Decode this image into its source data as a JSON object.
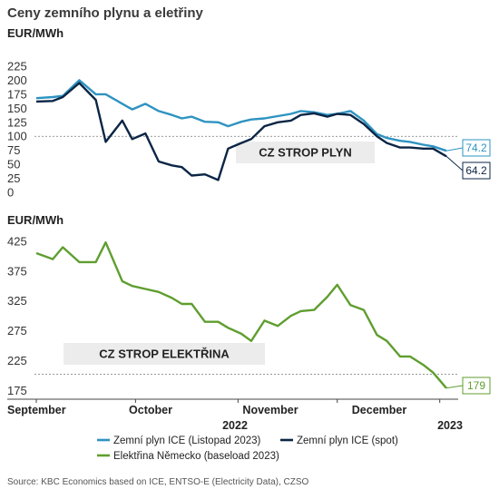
{
  "title": "Ceny zemního plynu a eletřiny",
  "source": "Source: KBC Economics based on ICE, ENTSO-E (Electricity Data), CZSO",
  "chart_data": [
    {
      "type": "line",
      "unit_label": "EUR/MWh",
      "ylim": [
        0,
        225
      ],
      "yticks": [
        0,
        25,
        50,
        75,
        100,
        125,
        150,
        175,
        200,
        225
      ],
      "reference_line": 100,
      "annotation": "CZ STROP PLYN",
      "x": [
        "2022-09-01",
        "2022-09-06",
        "2022-09-09",
        "2022-09-14",
        "2022-09-19",
        "2022-09-22",
        "2022-09-27",
        "2022-09-30",
        "2022-10-04",
        "2022-10-08",
        "2022-10-12",
        "2022-10-15",
        "2022-10-18",
        "2022-10-22",
        "2022-10-26",
        "2022-10-29",
        "2022-11-02",
        "2022-11-05",
        "2022-11-09",
        "2022-11-13",
        "2022-11-17",
        "2022-11-20",
        "2022-11-24",
        "2022-11-28",
        "2022-12-01",
        "2022-12-05",
        "2022-12-09",
        "2022-12-13",
        "2022-12-16",
        "2022-12-20",
        "2022-12-23",
        "2022-12-27",
        "2022-12-30",
        "2023-01-03"
      ],
      "series": [
        {
          "name": "Zemní plyn ICE (Listopad 2023)",
          "color": "#2e93c1",
          "end_value": "74.2",
          "values": [
            168,
            170,
            172,
            200,
            175,
            175,
            158,
            148,
            158,
            145,
            138,
            132,
            135,
            126,
            125,
            118,
            126,
            130,
            132,
            136,
            140,
            145,
            143,
            138,
            140,
            145,
            128,
            104,
            97,
            92,
            90,
            85,
            82,
            74.2
          ]
        },
        {
          "name": "Zemní plyn ICE (spot)",
          "color": "#0b2545",
          "end_value": "64.2",
          "values": [
            162,
            163,
            170,
            195,
            165,
            90,
            128,
            95,
            105,
            55,
            48,
            45,
            30,
            32,
            22,
            78,
            88,
            95,
            118,
            125,
            128,
            138,
            141,
            135,
            140,
            138,
            122,
            100,
            88,
            80,
            80,
            78,
            78,
            64.2
          ]
        }
      ]
    },
    {
      "type": "line",
      "unit_label": "EUR/MWh",
      "ylim": [
        165,
        440
      ],
      "yticks": [
        175,
        225,
        275,
        325,
        375,
        425
      ],
      "reference_line": 202,
      "annotation": "CZ STROP ELEKTŘINA",
      "x": [
        "2022-09-01",
        "2022-09-06",
        "2022-09-09",
        "2022-09-14",
        "2022-09-19",
        "2022-09-22",
        "2022-09-27",
        "2022-09-30",
        "2022-10-04",
        "2022-10-08",
        "2022-10-12",
        "2022-10-15",
        "2022-10-18",
        "2022-10-22",
        "2022-10-26",
        "2022-10-29",
        "2022-11-02",
        "2022-11-05",
        "2022-11-09",
        "2022-11-13",
        "2022-11-17",
        "2022-11-20",
        "2022-11-24",
        "2022-11-28",
        "2022-12-01",
        "2022-12-05",
        "2022-12-09",
        "2022-12-13",
        "2022-12-16",
        "2022-12-20",
        "2022-12-23",
        "2022-12-27",
        "2022-12-30",
        "2023-01-03"
      ],
      "series": [
        {
          "name": "Elektřina Německo (baseload 2023)",
          "color": "#5f9e2f",
          "end_value": "179",
          "values": [
            405,
            395,
            415,
            390,
            390,
            423,
            358,
            350,
            345,
            340,
            330,
            320,
            320,
            290,
            290,
            280,
            270,
            258,
            292,
            283,
            300,
            308,
            310,
            332,
            352,
            318,
            310,
            268,
            258,
            232,
            232,
            218,
            205,
            179
          ]
        }
      ]
    }
  ],
  "x_axis": {
    "months": [
      "September",
      "October",
      "November",
      "December",
      "2023"
    ],
    "year_label": "2022"
  },
  "legend": [
    "Zemní plyn ICE (Listopad 2023)",
    "Zemní plyn ICE (spot)",
    "Elektřina Německo (baseload 2023)"
  ]
}
